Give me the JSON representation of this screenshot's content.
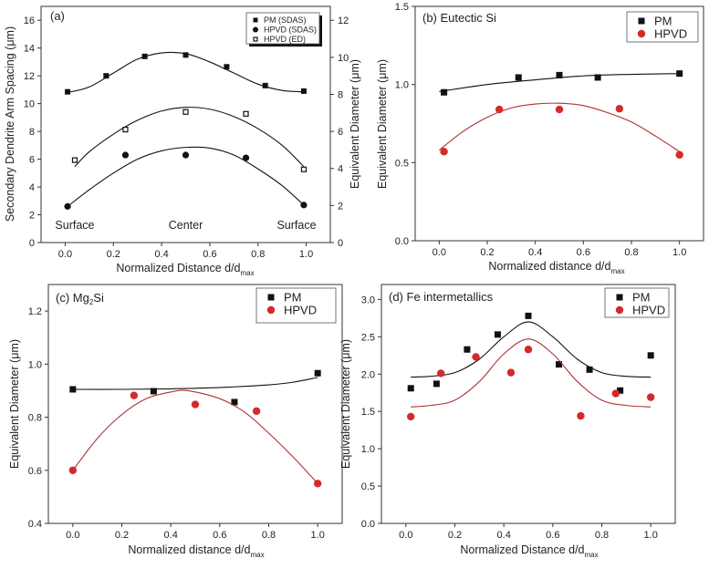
{
  "chart_data": [
    {
      "panel": "a",
      "type": "scatter",
      "title": "(a)",
      "xlabel": "Normalized Distance d/d",
      "xlabel_sub": "max",
      "ylabel": "Secondary Dendrite Arm Spacing (μm)",
      "y2label": "Equivalent Diameter (μm)",
      "xlim": [
        -0.1,
        1.1
      ],
      "ylim": [
        0,
        17
      ],
      "y2lim": [
        0,
        12.75
      ],
      "xticks": [
        "0.0",
        "0.2",
        "0.4",
        "0.6",
        "0.8",
        "1.0"
      ],
      "yticks": [
        "0",
        "2",
        "4",
        "6",
        "8",
        "10",
        "12",
        "14",
        "16"
      ],
      "y2ticks": [
        "0",
        "2",
        "4",
        "6",
        "8",
        "10",
        "12"
      ],
      "annotations": [
        {
          "text": "Surface",
          "x": 0.04,
          "y": 1.0
        },
        {
          "text": "Center",
          "x": 0.5,
          "y": 1.0
        },
        {
          "text": "Surface",
          "x": 0.96,
          "y": 1.0
        }
      ],
      "legend_position": "top-right",
      "series": [
        {
          "name": "PM (SDAS)",
          "marker": "square-filled",
          "color": "#111111",
          "axis": "left",
          "points": [
            [
              0.01,
              10.85
            ],
            [
              0.17,
              12.0
            ],
            [
              0.33,
              13.4
            ],
            [
              0.5,
              13.5
            ],
            [
              0.67,
              12.65
            ],
            [
              0.83,
              11.3
            ],
            [
              0.99,
              10.9
            ]
          ],
          "fit": [
            [
              0.01,
              10.8
            ],
            [
              0.1,
              11.2
            ],
            [
              0.2,
              12.2
            ],
            [
              0.3,
              13.2
            ],
            [
              0.4,
              13.65
            ],
            [
              0.5,
              13.6
            ],
            [
              0.6,
              13.0
            ],
            [
              0.7,
              12.2
            ],
            [
              0.8,
              11.4
            ],
            [
              0.9,
              10.95
            ],
            [
              0.99,
              10.85
            ]
          ]
        },
        {
          "name": "HPVD (SDAS)",
          "marker": "circle-filled",
          "color": "#111111",
          "axis": "left",
          "points": [
            [
              0.01,
              2.6
            ],
            [
              0.25,
              6.3
            ],
            [
              0.5,
              6.3
            ],
            [
              0.75,
              6.1
            ],
            [
              0.99,
              2.7
            ]
          ],
          "fit": [
            [
              0.01,
              2.6
            ],
            [
              0.1,
              3.8
            ],
            [
              0.2,
              5.0
            ],
            [
              0.3,
              6.0
            ],
            [
              0.4,
              6.6
            ],
            [
              0.5,
              6.85
            ],
            [
              0.6,
              6.8
            ],
            [
              0.7,
              6.3
            ],
            [
              0.8,
              5.3
            ],
            [
              0.9,
              4.1
            ],
            [
              0.99,
              2.7
            ]
          ]
        },
        {
          "name": "HPVD (ED)",
          "marker": "square-open",
          "color": "#111111",
          "axis": "right",
          "points": [
            [
              0.04,
              4.45
            ],
            [
              0.25,
              6.1
            ],
            [
              0.5,
              7.05
            ],
            [
              0.75,
              6.95
            ],
            [
              0.99,
              3.95
            ]
          ],
          "fit": [
            [
              0.04,
              4.1
            ],
            [
              0.1,
              4.9
            ],
            [
              0.2,
              5.85
            ],
            [
              0.3,
              6.6
            ],
            [
              0.4,
              7.1
            ],
            [
              0.5,
              7.3
            ],
            [
              0.6,
              7.2
            ],
            [
              0.7,
              6.8
            ],
            [
              0.8,
              6.15
            ],
            [
              0.9,
              5.25
            ],
            [
              0.99,
              4.1
            ]
          ]
        }
      ]
    },
    {
      "panel": "b",
      "type": "scatter",
      "title": "(b) Eutectic Si",
      "xlabel": "Normalized distance d/d",
      "xlabel_sub": "max",
      "ylabel": "Equivalent Diameter (μm)",
      "xlim": [
        -0.1,
        1.1
      ],
      "ylim": [
        0,
        1.5
      ],
      "xticks": [
        "0.0",
        "0.2",
        "0.4",
        "0.6",
        "0.8",
        "1.0"
      ],
      "yticks": [
        "0.0",
        "0.5",
        "1.0",
        "1.5"
      ],
      "legend_position": "top-right",
      "series": [
        {
          "name": "PM",
          "marker": "square-filled",
          "color": "#111111",
          "points": [
            [
              0.02,
              0.95
            ],
            [
              0.33,
              1.045
            ],
            [
              0.5,
              1.06
            ],
            [
              0.66,
              1.045
            ],
            [
              1.0,
              1.07
            ]
          ],
          "fit": [
            [
              0.0,
              0.955
            ],
            [
              0.2,
              1.0
            ],
            [
              0.4,
              1.03
            ],
            [
              0.6,
              1.055
            ],
            [
              0.8,
              1.065
            ],
            [
              1.0,
              1.07
            ]
          ]
        },
        {
          "name": "HPVD",
          "marker": "circle-filled",
          "color": "#d42a2a",
          "fit_color": "#b03232",
          "points": [
            [
              0.02,
              0.57
            ],
            [
              0.25,
              0.84
            ],
            [
              0.5,
              0.84
            ],
            [
              0.75,
              0.845
            ],
            [
              1.0,
              0.55
            ]
          ],
          "fit": [
            [
              0.0,
              0.58
            ],
            [
              0.1,
              0.7
            ],
            [
              0.2,
              0.79
            ],
            [
              0.3,
              0.85
            ],
            [
              0.4,
              0.875
            ],
            [
              0.5,
              0.88
            ],
            [
              0.6,
              0.865
            ],
            [
              0.7,
              0.82
            ],
            [
              0.8,
              0.76
            ],
            [
              0.9,
              0.67
            ],
            [
              1.0,
              0.57
            ]
          ]
        }
      ]
    },
    {
      "panel": "c",
      "type": "scatter",
      "title": "(c) Mg",
      "title_sub": "2",
      "title_tail": "Si",
      "xlabel": "Normalized distance d/d",
      "xlabel_sub": "max",
      "ylabel": "Equivalent Diameter (μm)",
      "xlim": [
        -0.1,
        1.1
      ],
      "ylim": [
        0.4,
        1.3
      ],
      "xticks": [
        "0.0",
        "0.2",
        "0.4",
        "0.6",
        "0.8",
        "1.0"
      ],
      "yticks": [
        "0.4",
        "0.6",
        "0.8",
        "1.0",
        "1.2"
      ],
      "legend_position": "top-right",
      "series": [
        {
          "name": "PM",
          "marker": "square-filled",
          "color": "#111111",
          "points": [
            [
              0.0,
              0.905
            ],
            [
              0.33,
              0.898
            ],
            [
              0.66,
              0.857
            ],
            [
              1.0,
              0.966
            ]
          ],
          "fit": [
            [
              0.0,
              0.905
            ],
            [
              0.2,
              0.905
            ],
            [
              0.4,
              0.907
            ],
            [
              0.6,
              0.912
            ],
            [
              0.8,
              0.922
            ],
            [
              0.9,
              0.932
            ],
            [
              1.0,
              0.95
            ]
          ]
        },
        {
          "name": "HPVD",
          "marker": "circle-filled",
          "color": "#d42a2a",
          "fit_color": "#b03232",
          "points": [
            [
              0.0,
              0.6
            ],
            [
              0.25,
              0.882
            ],
            [
              0.5,
              0.848
            ],
            [
              0.75,
              0.823
            ],
            [
              1.0,
              0.55
            ]
          ],
          "fit": [
            [
              0.0,
              0.6
            ],
            [
              0.1,
              0.72
            ],
            [
              0.2,
              0.81
            ],
            [
              0.3,
              0.87
            ],
            [
              0.4,
              0.895
            ],
            [
              0.47,
              0.9
            ],
            [
              0.6,
              0.87
            ],
            [
              0.7,
              0.82
            ],
            [
              0.8,
              0.74
            ],
            [
              0.9,
              0.65
            ],
            [
              1.0,
              0.55
            ]
          ]
        }
      ]
    },
    {
      "panel": "d",
      "type": "scatter",
      "title": "(d) Fe intermetallics",
      "xlabel": "Normalized Distance d/d",
      "xlabel_sub": "max",
      "ylabel": "Equivalent Diameter (μm)",
      "xlim": [
        -0.1,
        1.1
      ],
      "ylim": [
        0,
        3.2
      ],
      "xticks": [
        "0.0",
        "0.2",
        "0.4",
        "0.6",
        "0.8",
        "1.0"
      ],
      "yticks": [
        "0.0",
        "0.5",
        "1.0",
        "1.5",
        "2.0",
        "2.5",
        "3.0"
      ],
      "legend_position": "top-right",
      "series": [
        {
          "name": "PM",
          "marker": "square-filled",
          "color": "#111111",
          "points": [
            [
              0.02,
              1.81
            ],
            [
              0.125,
              1.87
            ],
            [
              0.25,
              2.33
            ],
            [
              0.375,
              2.53
            ],
            [
              0.5,
              2.78
            ],
            [
              0.625,
              2.13
            ],
            [
              0.75,
              2.06
            ],
            [
              0.875,
              1.78
            ],
            [
              1.0,
              2.25
            ]
          ],
          "fit": [
            [
              0.02,
              1.96
            ],
            [
              0.1,
              1.97
            ],
            [
              0.2,
              2.02
            ],
            [
              0.3,
              2.2
            ],
            [
              0.4,
              2.5
            ],
            [
              0.5,
              2.7
            ],
            [
              0.6,
              2.5
            ],
            [
              0.7,
              2.2
            ],
            [
              0.8,
              2.02
            ],
            [
              0.9,
              1.97
            ],
            [
              1.0,
              1.96
            ]
          ]
        },
        {
          "name": "HPVD",
          "marker": "circle-filled",
          "color": "#d42a2a",
          "fit_color": "#b03232",
          "points": [
            [
              0.02,
              1.43
            ],
            [
              0.143,
              2.01
            ],
            [
              0.286,
              2.23
            ],
            [
              0.429,
              2.02
            ],
            [
              0.5,
              2.33
            ],
            [
              0.714,
              1.44
            ],
            [
              0.857,
              1.74
            ],
            [
              1.0,
              1.69
            ]
          ],
          "fit": [
            [
              0.02,
              1.56
            ],
            [
              0.1,
              1.58
            ],
            [
              0.2,
              1.65
            ],
            [
              0.3,
              1.9
            ],
            [
              0.4,
              2.27
            ],
            [
              0.5,
              2.47
            ],
            [
              0.6,
              2.27
            ],
            [
              0.7,
              1.9
            ],
            [
              0.8,
              1.65
            ],
            [
              0.9,
              1.58
            ],
            [
              1.0,
              1.56
            ]
          ]
        }
      ]
    }
  ]
}
